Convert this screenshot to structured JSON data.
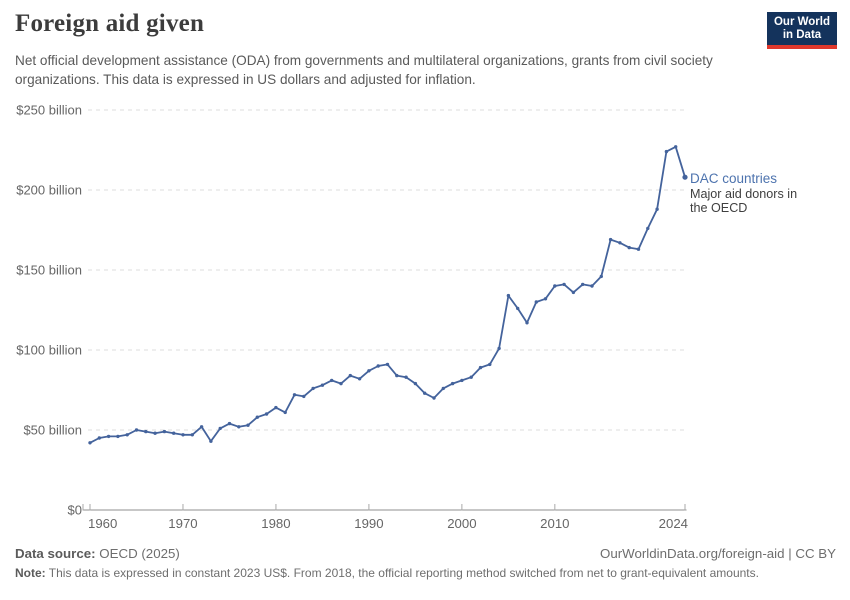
{
  "header": {
    "title": "Foreign aid given",
    "subtitle": "Net official development assistance (ODA) from governments and multilateral organizations, grants from civil society organizations. This data is expressed in US dollars and adjusted for inflation.",
    "logo": {
      "line1": "Our World",
      "line2": "in Data",
      "bg_color": "#14335c",
      "accent_color": "#e0382c"
    }
  },
  "chart_data": {
    "type": "line",
    "title": "Foreign aid given",
    "xlabel": "",
    "ylabel": "",
    "xlim": [
      1959.3,
      2024
    ],
    "ylim": [
      0,
      250
    ],
    "grid": "horizontal-dashed",
    "legend_position": "end-of-line-label",
    "x": [
      1960,
      1961,
      1962,
      1963,
      1964,
      1965,
      1966,
      1967,
      1968,
      1969,
      1970,
      1971,
      1972,
      1973,
      1974,
      1975,
      1976,
      1977,
      1978,
      1979,
      1980,
      1981,
      1982,
      1983,
      1984,
      1985,
      1986,
      1987,
      1988,
      1989,
      1990,
      1991,
      1992,
      1993,
      1994,
      1995,
      1996,
      1997,
      1998,
      1999,
      2000,
      2001,
      2002,
      2003,
      2004,
      2005,
      2006,
      2007,
      2008,
      2009,
      2010,
      2011,
      2012,
      2013,
      2014,
      2015,
      2016,
      2017,
      2018,
      2019,
      2020,
      2021,
      2022,
      2023,
      2024
    ],
    "series": [
      {
        "name": "DAC countries",
        "unit": "US$ billion",
        "color": "#44639c",
        "values": [
          42,
          45,
          46,
          46,
          47,
          50,
          49,
          48,
          49,
          48,
          47,
          47,
          52,
          43,
          51,
          54,
          52,
          53,
          58,
          60,
          64,
          61,
          72,
          71,
          76,
          78,
          81,
          79,
          84,
          82,
          87,
          90,
          91,
          84,
          83,
          79,
          73,
          70,
          76,
          79,
          81,
          83,
          89,
          91,
          101,
          134,
          126,
          117,
          130,
          132,
          140,
          141,
          136,
          141,
          140,
          146,
          169,
          167,
          164,
          163,
          176,
          188,
          224,
          227,
          208
        ]
      }
    ],
    "y_ticks": [
      {
        "value": 0,
        "label": "$0"
      },
      {
        "value": 50,
        "label": "$50 billion"
      },
      {
        "value": 100,
        "label": "$100 billion"
      },
      {
        "value": 150,
        "label": "$150 billion"
      },
      {
        "value": 200,
        "label": "$200 billion"
      },
      {
        "value": 250,
        "label": "$250 billion"
      }
    ],
    "x_ticks": [
      {
        "value": 1960,
        "label": "1960"
      },
      {
        "value": 1970,
        "label": "1970"
      },
      {
        "value": 1980,
        "label": "1980"
      },
      {
        "value": 1990,
        "label": "1990"
      },
      {
        "value": 2000,
        "label": "2000"
      },
      {
        "value": 2010,
        "label": "2010"
      },
      {
        "value": 2024,
        "label": "2024"
      }
    ],
    "annotation": {
      "label": "DAC countries",
      "description": "Major aid donors in the OECD"
    }
  },
  "footer": {
    "datasource_label": "Data source:",
    "datasource_value": "OECD (2025)",
    "citation": "OurWorldinData.org/foreign-aid | CC BY",
    "note_label": "Note:",
    "note_text": "This data is expressed in constant 2023 US$. From 2018, the official reporting method switched from net to grant-equivalent amounts."
  }
}
